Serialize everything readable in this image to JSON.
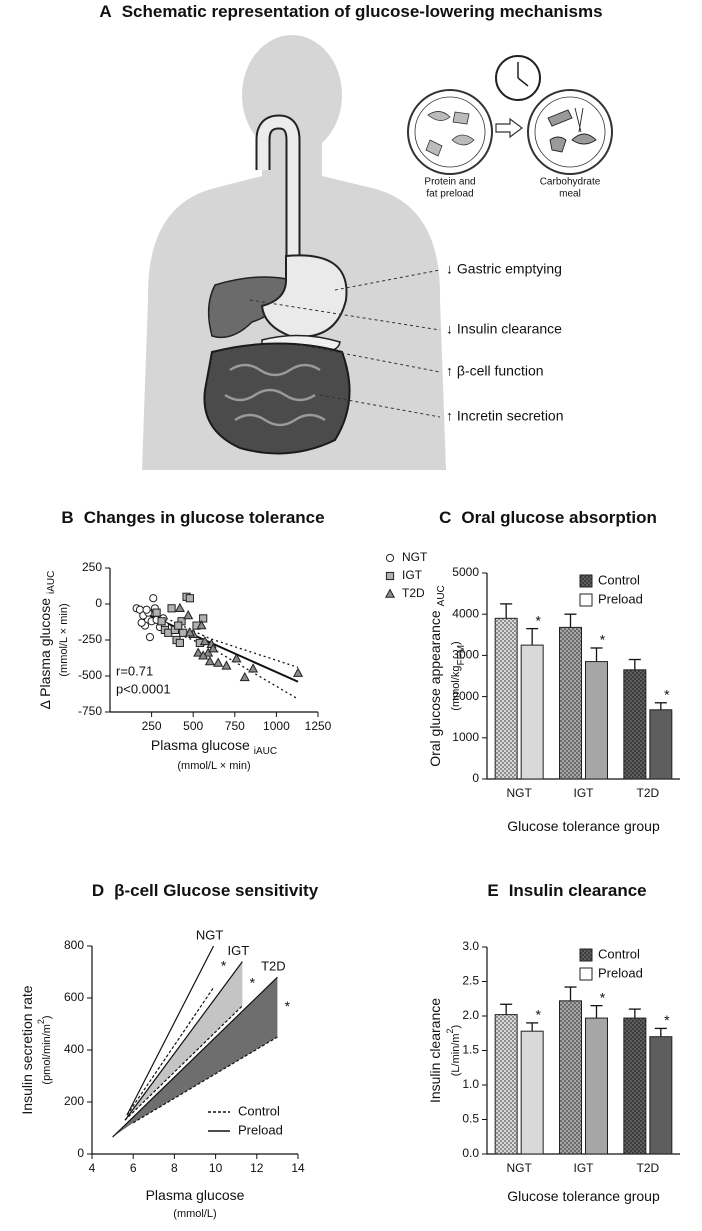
{
  "panel_a": {
    "panel": "A",
    "title": "Schematic representation of glucose-lowering mechanisms",
    "preload_label": [
      "Protein and",
      "fat preload"
    ],
    "meal_label": [
      "Carbohydrate",
      "meal"
    ],
    "effects": [
      "↓ Gastric emptying",
      "↓ Insulin clearance",
      "↑ β-cell function",
      "↑ Incretin secretion"
    ]
  },
  "chart_data": [
    {
      "type": "scatter",
      "panel": "B",
      "title": "Changes in glucose tolerance",
      "x_label": "Plasma glucose",
      "x_label_sub": "iAUC",
      "x_unit": "(mmol/L × min)",
      "y_label": "Δ Plasma glucose",
      "y_label_sub": "iAUC",
      "y_unit": "(mmol/L × min)",
      "xlim": [
        0,
        1250
      ],
      "xticks": [
        250,
        500,
        750,
        1000,
        1250
      ],
      "ylim": [
        -750,
        250
      ],
      "yticks": [
        -750,
        -500,
        -250,
        0,
        250
      ],
      "legend": "top-right",
      "series": [
        {
          "name": "NGT",
          "marker": "circle",
          "color": "#ffffff",
          "x": [
            160,
            180,
            200,
            210,
            230,
            250,
            260,
            280,
            300,
            320,
            240,
            190,
            270,
            220,
            330
          ],
          "y": [
            -30,
            -40,
            -80,
            -150,
            -60,
            -120,
            40,
            -110,
            -160,
            -100,
            -230,
            -130,
            -30,
            -40,
            -150
          ]
        },
        {
          "name": "IGT",
          "marker": "square",
          "color": "#b0b0b0",
          "x": [
            280,
            310,
            330,
            350,
            370,
            390,
            400,
            420,
            440,
            460,
            480,
            520,
            540,
            560,
            430,
            410
          ],
          "y": [
            -60,
            -120,
            -180,
            -200,
            -30,
            -180,
            -250,
            -270,
            -200,
            50,
            40,
            -150,
            -270,
            -100,
            -120,
            -150
          ]
        },
        {
          "name": "T2D",
          "marker": "triangle",
          "color": "#8a8a8a",
          "x": [
            420,
            470,
            500,
            530,
            550,
            570,
            590,
            600,
            610,
            620,
            650,
            700,
            760,
            810,
            860,
            1130,
            480,
            560
          ],
          "y": [
            -30,
            -80,
            -210,
            -340,
            -150,
            -260,
            -340,
            -400,
            -280,
            -310,
            -410,
            -430,
            -380,
            -510,
            -450,
            -480,
            -200,
            -360
          ]
        }
      ],
      "fit": {
        "x": [
          200,
          1130
        ],
        "y": [
          -60,
          -540
        ]
      },
      "confidence_band": {
        "x": [
          200,
          600,
          1130
        ],
        "upper": [
          -25,
          -240,
          -440
        ],
        "lower": [
          -105,
          -300,
          -660
        ]
      },
      "annotations": [
        "r=0.71",
        "p<0.0001"
      ]
    },
    {
      "type": "grouped_bar",
      "panel": "C",
      "title": "Oral glucose absorption",
      "y_label": "Oral glucose appearance",
      "y_label_sub": "AUC",
      "y_unit": "(mmol/kg",
      "y_unit_sub": "FFM",
      "y_unit_end": ")",
      "x_label": "Glucose tolerance group",
      "categories": [
        "NGT",
        "IGT",
        "T2D"
      ],
      "category_colors": [
        "#d9d9d9",
        "#a6a6a6",
        "#5e5e5e"
      ],
      "ylim": [
        0,
        5000
      ],
      "yticks": [
        0,
        1000,
        2000,
        3000,
        4000,
        5000
      ],
      "legend": "top-right",
      "series": [
        {
          "name": "Control",
          "pattern": "checker",
          "values": [
            3900,
            3680,
            2650
          ],
          "errors": [
            350,
            320,
            250
          ]
        },
        {
          "name": "Preload",
          "pattern": "solid",
          "values": [
            3250,
            2850,
            1680
          ],
          "errors": [
            400,
            330,
            170
          ],
          "significance": [
            "*",
            "*",
            "*"
          ]
        }
      ]
    },
    {
      "type": "wedge",
      "panel": "D",
      "title": "β-cell Glucose sensitivity",
      "x_label": "Plasma glucose",
      "x_unit": "(mmol/L)",
      "y_label": "Insulin secretion rate",
      "y_unit": "(pmol/min/m",
      "y_unit_sup": "2",
      "y_unit_end": ")",
      "xlim": [
        4,
        14
      ],
      "xticks": [
        4,
        6,
        8,
        10,
        12,
        14
      ],
      "ylim": [
        0,
        800
      ],
      "yticks": [
        0,
        200,
        400,
        600,
        800
      ],
      "legend": "bottom-right",
      "legend_entries": [
        {
          "name": "Control",
          "dashed": true
        },
        {
          "name": "Preload",
          "dashed": false
        }
      ],
      "groups": [
        {
          "name": "NGT",
          "color": "#ffffff",
          "control_x": [
            5.7,
            9.9
          ],
          "control_y": [
            150,
            640
          ],
          "preload_x": [
            5.7,
            9.9
          ],
          "preload_y": [
            150,
            800
          ],
          "significance": "*"
        },
        {
          "name": "IGT",
          "color": "#c4c4c4",
          "control_x": [
            5.6,
            11.3
          ],
          "control_y": [
            130,
            570
          ],
          "preload_x": [
            5.6,
            11.3
          ],
          "preload_y": [
            130,
            740
          ],
          "significance": "*"
        },
        {
          "name": "T2D",
          "color": "#6e6e6e",
          "control_x": [
            6,
            13
          ],
          "control_y": [
            120,
            450
          ],
          "preload_x": [
            5,
            13
          ],
          "preload_y": [
            65,
            680
          ],
          "significance": "*"
        }
      ]
    },
    {
      "type": "grouped_bar",
      "panel": "E",
      "title": "Insulin clearance",
      "y_label": "Insulin clearance",
      "y_unit": "(L/min/m",
      "y_unit_sup": "2",
      "y_unit_end": ")",
      "x_label": "Glucose tolerance group",
      "categories": [
        "NGT",
        "IGT",
        "T2D"
      ],
      "category_colors": [
        "#d9d9d9",
        "#a6a6a6",
        "#5e5e5e"
      ],
      "ylim": [
        0,
        3
      ],
      "yticks": [
        {
          "value": 0,
          "label": "0.0"
        },
        0.5,
        {
          "value": 1,
          "label": "1.0"
        },
        1.5,
        {
          "value": 2,
          "label": "2.0"
        },
        2.5,
        {
          "value": 3,
          "label": "3.0"
        }
      ],
      "legend": "top-right",
      "series": [
        {
          "name": "Control",
          "pattern": "checker",
          "values": [
            2.02,
            2.22,
            1.97
          ],
          "errors": [
            0.15,
            0.2,
            0.13
          ]
        },
        {
          "name": "Preload",
          "pattern": "solid",
          "values": [
            1.78,
            1.97,
            1.7
          ],
          "errors": [
            0.12,
            0.18,
            0.12
          ],
          "significance": [
            "*",
            "*",
            "*"
          ]
        }
      ]
    }
  ]
}
